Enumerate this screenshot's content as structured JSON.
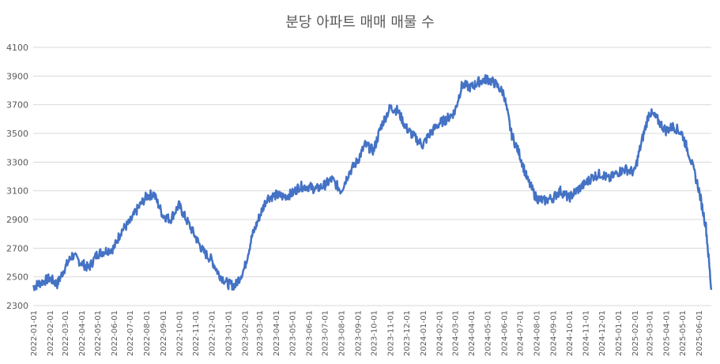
{
  "chart_data": {
    "type": "line",
    "title": "분당 아파트 매매 매물 수",
    "xlabel": "",
    "ylabel": "",
    "ylim": [
      2300,
      4100
    ],
    "yticks": [
      2300,
      2500,
      2700,
      2900,
      3100,
      3300,
      3500,
      3700,
      3900,
      4100
    ],
    "xlim": [
      "2022-01-01",
      "2025-06-25"
    ],
    "grid": true,
    "legend": "none",
    "line_color": "#4472C4",
    "xtick_labels": [
      "2022-01-01",
      "2022-02-01",
      "2022-03-01",
      "2022-04-01",
      "2022-05-01",
      "2022-06-01",
      "2022-07-01",
      "2022-08-01",
      "2022-09-01",
      "2022-10-01",
      "2022-11-01",
      "2022-12-01",
      "2023-01-01",
      "2023-02-01",
      "2023-03-01",
      "2023-04-01",
      "2023-05-01",
      "2023-06-01",
      "2023-07-01",
      "2023-08-01",
      "2023-09-01",
      "2023-10-01",
      "2023-11-01",
      "2023-12-01",
      "2024-01-01",
      "2024-02-01",
      "2024-03-01",
      "2024-04-01",
      "2024-05-01",
      "2024-06-01",
      "2024-07-01",
      "2024-08-01",
      "2024-09-01",
      "2024-10-01",
      "2024-11-01",
      "2024-12-01",
      "2025-01-01",
      "2025-02-01",
      "2025-03-01",
      "2025-04-01",
      "2025-05-01",
      "2025-06-01"
    ],
    "series": [
      {
        "x": [
          "2022-01-01",
          "2022-01-15",
          "2022-02-01",
          "2022-02-15",
          "2022-03-01",
          "2022-03-15",
          "2022-04-01",
          "2022-04-15",
          "2022-05-01",
          "2022-05-15",
          "2022-06-01",
          "2022-06-15",
          "2022-07-01",
          "2022-07-15",
          "2022-08-01",
          "2022-08-15",
          "2022-09-01",
          "2022-09-15",
          "2022-10-01",
          "2022-10-15",
          "2022-11-01",
          "2022-11-15",
          "2022-12-01",
          "2022-12-15",
          "2023-01-01",
          "2023-01-15",
          "2023-02-01",
          "2023-02-15",
          "2023-03-01",
          "2023-03-15",
          "2023-04-01",
          "2023-04-15",
          "2023-05-01",
          "2023-05-15",
          "2023-06-01",
          "2023-06-15",
          "2023-07-01",
          "2023-07-15",
          "2023-08-01",
          "2023-08-15",
          "2023-09-01",
          "2023-09-15",
          "2023-10-01",
          "2023-10-15",
          "2023-11-01",
          "2023-11-15",
          "2023-12-01",
          "2023-12-15",
          "2024-01-01",
          "2024-01-15",
          "2024-02-01",
          "2024-02-15",
          "2024-03-01",
          "2024-03-15",
          "2024-04-01",
          "2024-04-15",
          "2024-05-01",
          "2024-05-15",
          "2024-06-01",
          "2024-06-15",
          "2024-07-01",
          "2024-07-15",
          "2024-08-01",
          "2024-08-15",
          "2024-09-01",
          "2024-09-15",
          "2024-10-01",
          "2024-10-15",
          "2024-11-01",
          "2024-11-15",
          "2024-12-01",
          "2024-12-15",
          "2025-01-01",
          "2025-01-15",
          "2025-02-01",
          "2025-02-15",
          "2025-03-01",
          "2025-03-15",
          "2025-04-01",
          "2025-04-15",
          "2025-05-01",
          "2025-05-15",
          "2025-06-01",
          "2025-06-15",
          "2025-06-25"
        ],
        "values": [
          2430,
          2460,
          2490,
          2450,
          2560,
          2650,
          2600,
          2560,
          2660,
          2680,
          2700,
          2820,
          2880,
          2970,
          3060,
          3080,
          2930,
          2900,
          3000,
          2900,
          2780,
          2680,
          2620,
          2520,
          2450,
          2440,
          2560,
          2780,
          2920,
          3050,
          3070,
          3060,
          3080,
          3130,
          3130,
          3110,
          3140,
          3180,
          3100,
          3220,
          3310,
          3420,
          3380,
          3550,
          3680,
          3660,
          3540,
          3480,
          3420,
          3500,
          3570,
          3600,
          3650,
          3840,
          3820,
          3860,
          3880,
          3850,
          3780,
          3500,
          3350,
          3180,
          3050,
          3030,
          3050,
          3100,
          3050,
          3100,
          3150,
          3200,
          3220,
          3180,
          3230,
          3250,
          3230,
          3450,
          3650,
          3600,
          3520,
          3550,
          3500,
          3350,
          3120,
          2850,
          2410
        ]
      }
    ]
  }
}
